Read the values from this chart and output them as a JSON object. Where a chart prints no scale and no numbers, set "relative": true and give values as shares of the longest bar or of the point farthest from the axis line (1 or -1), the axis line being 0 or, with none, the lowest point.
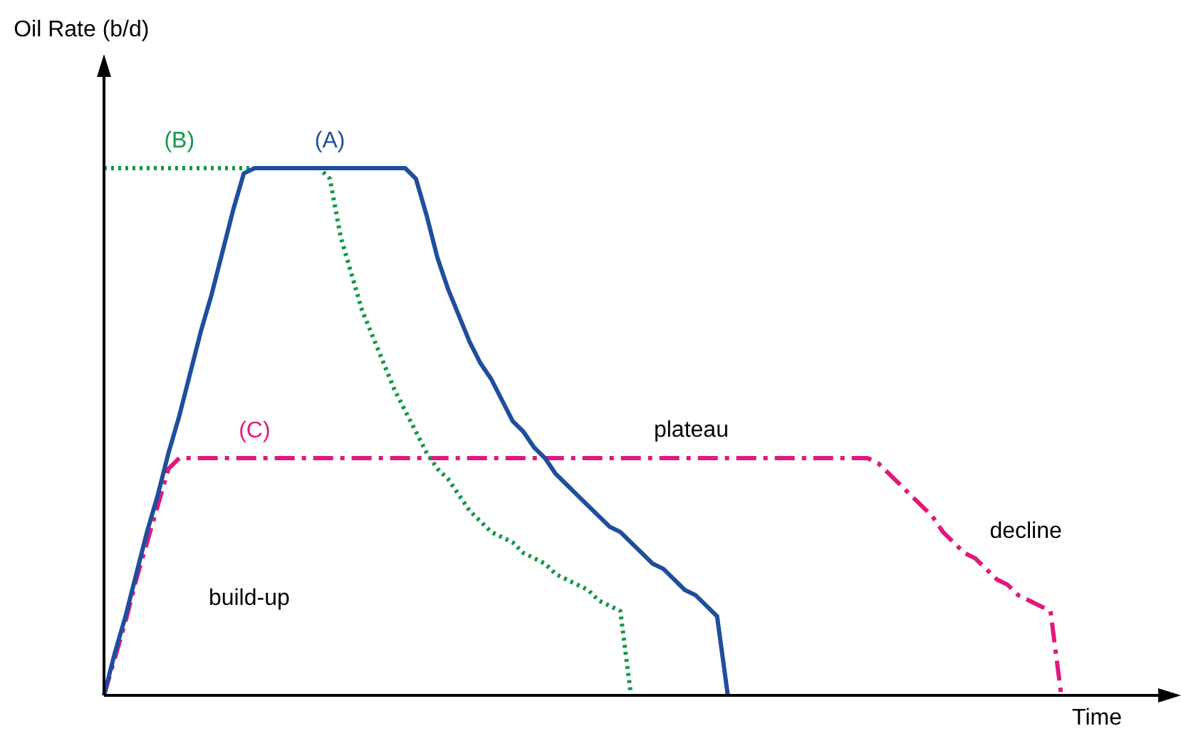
{
  "chart_data": {
    "type": "line",
    "relative": true,
    "xlabel": "Time",
    "grid": false,
    "legend": false,
    "marker": "none",
    "categories": [
      null,
      null,
      null,
      null,
      null,
      null,
      null,
      null,
      null,
      null,
      null,
      null,
      null,
      null,
      null,
      null,
      null,
      null,
      null,
      null,
      null,
      null,
      null,
      null,
      null,
      null,
      null,
      null,
      null,
      null,
      null,
      null,
      null,
      null,
      null,
      null,
      null,
      null,
      null,
      null,
      null,
      null,
      null,
      null,
      null,
      null,
      null,
      null,
      null,
      null,
      null,
      null,
      null,
      null,
      null,
      null,
      null,
      null,
      null,
      null,
      null,
      null,
      null,
      null,
      null,
      null,
      null,
      null,
      null,
      null,
      null,
      null,
      null,
      null,
      null,
      null,
      null,
      null,
      null,
      null,
      null,
      null,
      null,
      null,
      null,
      null,
      null,
      null,
      null,
      null,
      null,
      null,
      null,
      null,
      null,
      null,
      null,
      null,
      null,
      null,
      null
    ],
    "series": [
      {
        "name": "(A)",
        "color": "#1f4e9c",
        "line_style": "solid",
        "values": [
          0,
          0.08,
          0.15,
          0.23,
          0.31,
          0.38,
          0.46,
          0.53,
          0.61,
          0.69,
          0.76,
          0.84,
          0.92,
          0.99,
          1,
          1,
          1,
          1,
          1,
          1,
          1,
          1,
          1,
          1,
          1,
          1,
          1,
          1,
          1,
          0.98,
          0.91,
          0.83,
          0.77,
          0.72,
          0.67,
          0.63,
          0.6,
          0.56,
          0.52,
          0.5,
          0.47,
          0.45,
          0.42,
          0.4,
          0.38,
          0.36,
          0.34,
          0.32,
          0.31,
          0.29,
          0.27,
          0.25,
          0.24,
          0.22,
          0.2,
          0.19,
          0.17,
          0.15,
          0,
          null,
          null,
          null,
          null,
          null,
          null,
          null,
          null,
          null,
          null,
          null,
          null,
          null,
          null,
          null,
          null,
          null,
          null,
          null,
          null,
          null,
          null,
          null,
          null,
          null,
          null,
          null,
          null,
          null,
          null,
          null,
          null,
          null,
          null,
          null,
          null,
          null,
          null,
          null,
          null,
          null,
          null
        ]
      },
      {
        "name": "(B)",
        "color": "#12994a",
        "line_style": "dotted",
        "values": [
          1,
          1,
          1,
          1,
          1,
          1,
          1,
          1,
          1,
          1,
          1,
          1,
          1,
          1,
          1,
          1,
          1,
          1,
          1,
          1,
          1,
          0.98,
          0.87,
          0.8,
          0.73,
          0.68,
          0.63,
          0.58,
          0.54,
          0.5,
          0.46,
          0.43,
          0.41,
          0.38,
          0.35,
          0.33,
          0.31,
          0.3,
          0.29,
          0.27,
          0.26,
          0.25,
          0.23,
          0.22,
          0.21,
          0.2,
          0.18,
          0.17,
          0.16,
          0,
          null,
          null,
          null,
          null,
          null,
          null,
          null,
          null,
          null,
          null,
          null,
          null,
          null,
          null,
          null,
          null,
          null,
          null,
          null,
          null,
          null,
          null,
          null,
          null,
          null,
          null,
          null,
          null,
          null,
          null,
          null,
          null,
          null,
          null,
          null,
          null,
          null,
          null,
          null,
          null,
          null,
          null,
          null,
          null,
          null,
          null,
          null,
          null,
          null,
          null,
          null
        ]
      },
      {
        "name": "(C)",
        "color": "#e0197d",
        "line_style": "dashdot",
        "values": [
          0,
          0.07,
          0.14,
          0.22,
          0.29,
          0.36,
          0.43,
          0.45,
          0.45,
          0.45,
          0.45,
          0.45,
          0.45,
          0.45,
          0.45,
          0.45,
          0.45,
          0.45,
          0.45,
          0.45,
          0.45,
          0.45,
          0.45,
          0.45,
          0.45,
          0.45,
          0.45,
          0.45,
          0.45,
          0.45,
          0.45,
          0.45,
          0.45,
          0.45,
          0.45,
          0.45,
          0.45,
          0.45,
          0.45,
          0.45,
          0.45,
          0.45,
          0.45,
          0.45,
          0.45,
          0.45,
          0.45,
          0.45,
          0.45,
          0.45,
          0.45,
          0.45,
          0.45,
          0.45,
          0.45,
          0.45,
          0.45,
          0.45,
          0.45,
          0.45,
          0.45,
          0.45,
          0.45,
          0.45,
          0.45,
          0.45,
          0.45,
          0.45,
          0.45,
          0.45,
          0.45,
          0.45,
          0.44,
          0.42,
          0.4,
          0.38,
          0.36,
          0.34,
          0.31,
          0.29,
          0.27,
          0.26,
          0.24,
          0.22,
          0.21,
          0.19,
          0.18,
          0.17,
          0.16,
          0,
          null,
          null,
          null,
          null,
          null,
          null,
          null,
          null,
          null,
          null,
          null
        ]
      }
    ],
    "annotations": [
      "Oil Rate (b/d)",
      "build-up",
      "plateau",
      "decline"
    ]
  }
}
